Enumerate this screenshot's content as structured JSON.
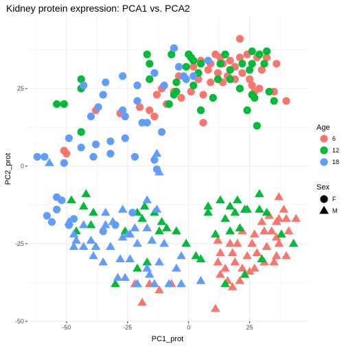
{
  "chart_data": {
    "type": "scatter",
    "title": "Kidney protein expression: PCA1 vs. PCA2",
    "xlabel": "PC1_prot",
    "ylabel": "PC2_prot",
    "xlim": [
      -66,
      49
    ],
    "ylim": [
      -50,
      48
    ],
    "x_ticks": [
      "-50",
      "-25",
      "0",
      "25"
    ],
    "x_tick_values": [
      -50,
      -25,
      0,
      25
    ],
    "y_ticks": [
      "25",
      "0",
      "-25",
      "-50"
    ],
    "y_tick_values": [
      25,
      0,
      -25,
      -50
    ],
    "grid": true,
    "legend_position": "right",
    "color_legend": {
      "title": "Age",
      "items": [
        {
          "label": "6",
          "color": "#F8766D"
        },
        {
          "label": "12",
          "color": "#00BA38"
        },
        {
          "label": "18",
          "color": "#619CFF"
        }
      ]
    },
    "shape_legend": {
      "title": "Sex",
      "items": [
        {
          "label": "F",
          "shape": "circle"
        },
        {
          "label": "M",
          "shape": "triangle"
        }
      ]
    },
    "series": [
      {
        "age": "6",
        "sex": "F",
        "points": [
          [
            21,
            41
          ],
          [
            11,
            36
          ],
          [
            13,
            35
          ],
          [
            17,
            34
          ],
          [
            21,
            35
          ],
          [
            24,
            36
          ],
          [
            28,
            35
          ],
          [
            32,
            35
          ],
          [
            36,
            33
          ],
          [
            5,
            34
          ],
          [
            9,
            33
          ],
          [
            14,
            33
          ],
          [
            19,
            32
          ],
          [
            2,
            32
          ],
          [
            8,
            31
          ],
          [
            12,
            30
          ],
          [
            16,
            29
          ],
          [
            22,
            30
          ],
          [
            25,
            28
          ],
          [
            30,
            31
          ],
          [
            -4,
            29
          ],
          [
            4,
            28
          ],
          [
            9,
            27
          ],
          [
            14,
            27
          ],
          [
            19,
            28
          ],
          [
            26,
            26
          ],
          [
            29,
            25
          ],
          [
            -11,
            25
          ],
          [
            -6,
            24
          ],
          [
            1,
            24
          ],
          [
            6,
            23
          ],
          [
            27,
            24
          ],
          [
            35,
            24
          ],
          [
            -13,
            23
          ],
          [
            -3,
            22
          ],
          [
            40,
            21
          ],
          [
            -9,
            20
          ],
          [
            -20,
            19
          ],
          [
            -16,
            18
          ],
          [
            -38,
            18
          ],
          [
            -28,
            17
          ],
          [
            -14,
            16
          ],
          [
            6,
            14
          ],
          [
            -51,
            5
          ],
          [
            -50,
            4
          ]
        ]
      },
      {
        "age": "6",
        "sex": "M",
        "points": [
          [
            37,
            -10
          ],
          [
            37,
            -17
          ],
          [
            39,
            -14
          ],
          [
            33,
            -16
          ],
          [
            36,
            -18
          ],
          [
            40,
            -17
          ],
          [
            44,
            -17
          ],
          [
            30,
            -18
          ],
          [
            34,
            -21
          ],
          [
            41,
            -21
          ],
          [
            27,
            -22
          ],
          [
            31,
            -21
          ],
          [
            36,
            -23
          ],
          [
            22,
            -21
          ],
          [
            26,
            -25
          ],
          [
            37,
            -25
          ],
          [
            12,
            -24
          ],
          [
            17,
            -25
          ],
          [
            20,
            -25
          ],
          [
            32,
            -26
          ],
          [
            13,
            -28
          ],
          [
            18,
            -28
          ],
          [
            28,
            -28
          ],
          [
            24,
            -29
          ],
          [
            36,
            -29
          ],
          [
            40,
            -29
          ],
          [
            12,
            -31
          ],
          [
            19,
            -31
          ],
          [
            15,
            -33
          ],
          [
            22,
            -33
          ],
          [
            31,
            -31
          ],
          [
            35,
            -31
          ],
          [
            13,
            -35
          ],
          [
            27,
            -33
          ],
          [
            25,
            -34
          ],
          [
            16,
            -37
          ],
          [
            21,
            -37
          ],
          [
            18,
            -39
          ],
          [
            -22,
            -38
          ],
          [
            -16,
            -38
          ],
          [
            -7,
            -38
          ],
          [
            -12,
            -40
          ],
          [
            -19,
            -44
          ],
          [
            11,
            -46
          ]
        ]
      },
      {
        "age": "12",
        "sex": "F",
        "points": [
          [
            -16,
            33
          ],
          [
            -6,
            38
          ],
          [
            -17,
            36
          ],
          [
            -7,
            36
          ],
          [
            0,
            36
          ],
          [
            2,
            34
          ],
          [
            1,
            35
          ],
          [
            5,
            33
          ],
          [
            15,
            36
          ],
          [
            -1,
            32
          ],
          [
            26,
            37
          ],
          [
            29,
            36
          ],
          [
            32,
            37
          ],
          [
            31,
            33
          ],
          [
            26,
            33
          ],
          [
            22,
            33
          ],
          [
            13,
            33
          ],
          [
            17,
            31
          ],
          [
            25,
            31
          ],
          [
            4,
            30
          ],
          [
            17,
            28
          ],
          [
            12,
            28
          ],
          [
            -16,
            28
          ],
          [
            -44,
            28
          ],
          [
            -44,
            25
          ],
          [
            -5,
            27
          ],
          [
            2,
            26
          ],
          [
            -5,
            24
          ],
          [
            21,
            25
          ],
          [
            26,
            23
          ],
          [
            33,
            24
          ],
          [
            27,
            22
          ],
          [
            35,
            21
          ],
          [
            -54,
            20
          ],
          [
            -51,
            20
          ],
          [
            -6,
            23
          ],
          [
            -8,
            20
          ],
          [
            10,
            22
          ],
          [
            24,
            18
          ],
          [
            5,
            18
          ],
          [
            -44,
            11
          ],
          [
            28,
            13
          ]
        ]
      },
      {
        "age": "12",
        "sex": "M",
        "points": [
          [
            -42,
            -9
          ],
          [
            29,
            -9
          ],
          [
            -43,
            -13
          ],
          [
            -48,
            -11
          ],
          [
            -39,
            -15
          ],
          [
            -21,
            -15
          ],
          [
            -19,
            -17
          ],
          [
            -18,
            -13
          ],
          [
            -14,
            -15
          ],
          [
            -11,
            -18
          ],
          [
            -40,
            -19
          ],
          [
            20,
            -11
          ],
          [
            -9,
            -20
          ],
          [
            -46,
            -21
          ],
          [
            8,
            -13
          ],
          [
            -26,
            -21
          ],
          [
            17,
            -13
          ],
          [
            23,
            -14
          ],
          [
            29,
            -14
          ],
          [
            -12,
            -21
          ],
          [
            -5,
            -21
          ],
          [
            -1,
            -25
          ],
          [
            17,
            -21
          ],
          [
            21,
            -20
          ],
          [
            3,
            -29
          ],
          [
            5,
            -30
          ],
          [
            -17,
            -31
          ],
          [
            -21,
            -33
          ],
          [
            13,
            -11
          ],
          [
            8,
            -15
          ],
          [
            19,
            -15
          ],
          [
            11,
            -22
          ],
          [
            24,
            -14
          ],
          [
            32,
            -15
          ],
          [
            15,
            -17
          ],
          [
            -21,
            -38
          ],
          [
            15,
            -38
          ],
          [
            -30,
            -38
          ],
          [
            23,
            -35
          ],
          [
            30,
            -30
          ],
          [
            38,
            -22
          ],
          [
            43,
            -25
          ]
        ]
      },
      {
        "age": "18",
        "sex": "F",
        "points": [
          [
            -23,
            -15
          ],
          [
            -14,
            30
          ],
          [
            -6,
            38
          ],
          [
            -2,
            29
          ],
          [
            2,
            29
          ],
          [
            8,
            34
          ],
          [
            -4,
            32
          ],
          [
            -1,
            28
          ],
          [
            -10,
            26
          ],
          [
            -21,
            26
          ],
          [
            -27,
            29
          ],
          [
            -34,
            27
          ],
          [
            -43,
            26
          ],
          [
            -35,
            23
          ],
          [
            -37,
            19
          ],
          [
            -40,
            16
          ],
          [
            -27,
            18
          ],
          [
            -26,
            16
          ],
          [
            -21,
            21
          ],
          [
            -19,
            14
          ],
          [
            -17,
            14
          ],
          [
            -11,
            11
          ],
          [
            -26,
            9
          ],
          [
            -32,
            8
          ],
          [
            -38,
            7
          ],
          [
            -49,
            9
          ],
          [
            -44,
            6
          ],
          [
            -39,
            3
          ],
          [
            -22,
            3
          ],
          [
            -32,
            4
          ],
          [
            -14,
            2
          ],
          [
            -13,
            -1
          ],
          [
            -59,
            3
          ],
          [
            -51,
            1
          ],
          [
            -62,
            3
          ],
          [
            -54,
            -10
          ],
          [
            -52,
            -11
          ],
          [
            -54,
            -14
          ],
          [
            -58,
            -16
          ],
          [
            -56,
            -18
          ],
          [
            -47,
            -17
          ],
          [
            -49,
            -19
          ],
          [
            -35,
            -21
          ],
          [
            -30,
            -19
          ]
        ]
      },
      {
        "age": "18",
        "sex": "M",
        "points": [
          [
            -57,
            1
          ],
          [
            -13,
            4
          ],
          [
            -12,
            -2
          ],
          [
            -17,
            -11
          ],
          [
            -13,
            -14
          ],
          [
            -27,
            -14
          ],
          [
            -34,
            -15
          ],
          [
            -31,
            -18
          ],
          [
            -22,
            -20
          ],
          [
            -25,
            -22
          ],
          [
            -34,
            -19
          ],
          [
            -43,
            -19
          ],
          [
            -49,
            -18
          ],
          [
            -47,
            -22
          ],
          [
            -46,
            -24
          ],
          [
            -47,
            -26
          ],
          [
            -40,
            -24
          ],
          [
            -43,
            -26
          ],
          [
            -38,
            -26
          ],
          [
            -32,
            -26
          ],
          [
            -27,
            -23
          ],
          [
            -39,
            -29
          ],
          [
            -35,
            -31
          ],
          [
            -24,
            -30
          ],
          [
            -28,
            -30
          ],
          [
            -17,
            -33
          ],
          [
            -16,
            -35
          ],
          [
            -29,
            -36
          ],
          [
            -26,
            -36
          ],
          [
            -21,
            -38
          ],
          [
            -12,
            -31
          ],
          [
            -8,
            -38
          ],
          [
            -3,
            -38
          ],
          [
            5,
            -37
          ],
          [
            -15,
            -24
          ],
          [
            -10,
            -25
          ],
          [
            -24,
            -22
          ],
          [
            -17,
            -20
          ],
          [
            -21,
            -25
          ],
          [
            -3,
            -29
          ],
          [
            -5,
            -33
          ],
          [
            -14,
            -38
          ]
        ]
      }
    ]
  }
}
